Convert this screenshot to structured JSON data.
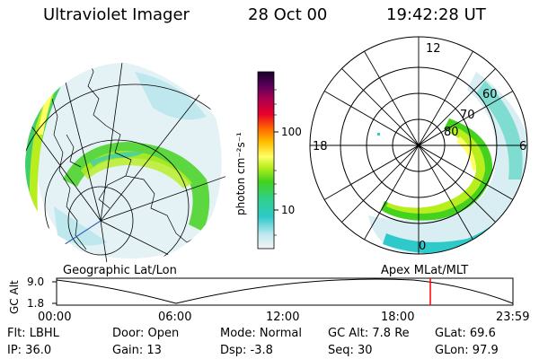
{
  "header": {
    "title": "Ultraviolet Imager",
    "date": "28 Oct 00",
    "time": "19:42:28 UT"
  },
  "colorbar": {
    "unit_label": "photon cm⁻²s⁻¹",
    "tick_100": "100",
    "tick_10": "10"
  },
  "polar_plot": {
    "mlt_12": "12",
    "mlt_18": "18",
    "mlt_6": "6",
    "mlt_0": "0",
    "lat_60": "60",
    "lat_70": "70",
    "lat_80": "80"
  },
  "panel_labels": {
    "left": "Geographic Lat/Lon",
    "right": "Apex MLat/MLT"
  },
  "timeline": {
    "y_axis_label": "GC Alt",
    "y_max": "9.0",
    "y_min": "1.8",
    "ticks": [
      "00:00",
      "06:00",
      "12:00",
      "18:00",
      "23:59"
    ],
    "cursor_color": "#ff0000"
  },
  "status": {
    "flt": "Flt: LBHL",
    "ip": "IP: 36.0",
    "door": "Door: Open",
    "gain": "Gain: 13",
    "mode": "Mode: Normal",
    "dsp": "Dsp:   -3.8",
    "gc_alt": "GC Alt: 7.8 Re",
    "seq": "Seq: 30",
    "glat": "GLat:  69.6",
    "glon": "GLon:  97.9"
  }
}
